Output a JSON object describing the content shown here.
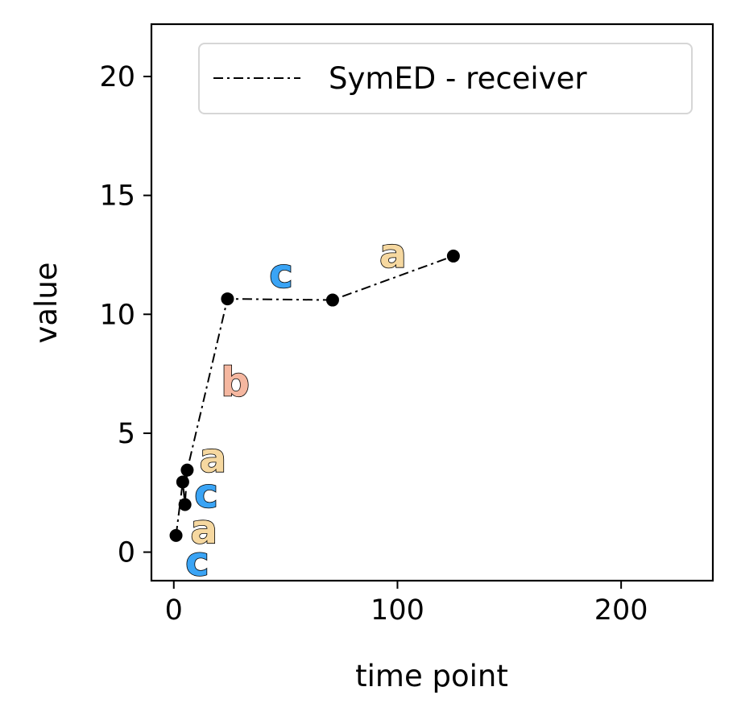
{
  "chart_data": {
    "type": "line",
    "xlabel": "time point",
    "ylabel": "value",
    "xlim": [
      -10,
      241
    ],
    "ylim": [
      -1.2,
      22.2
    ],
    "x_ticks": [
      0,
      100,
      200
    ],
    "y_ticks": [
      0,
      5,
      10,
      15,
      20
    ],
    "legend": {
      "position": "top-right",
      "entries": [
        "SymED - receiver"
      ]
    },
    "grid": false,
    "series": [
      {
        "name": "SymED - receiver",
        "line_style": "dash-dot",
        "color": "#000000",
        "x": [
          1,
          4,
          5,
          6,
          24,
          71,
          125
        ],
        "y": [
          0.7,
          2.95,
          2.0,
          3.45,
          10.65,
          10.6,
          12.45
        ]
      }
    ],
    "symbols": [
      {
        "text": "c",
        "x": 10.5,
        "y": -0.4,
        "color": "#3aa4f5"
      },
      {
        "text": "a",
        "x": 13.5,
        "y": 0.95,
        "color": "#f6d8a0"
      },
      {
        "text": "c",
        "x": 14.5,
        "y": 2.45,
        "color": "#3aa4f5"
      },
      {
        "text": "a",
        "x": 17.5,
        "y": 3.95,
        "color": "#f6d8a0"
      },
      {
        "text": "b",
        "x": 27.5,
        "y": 7.15,
        "color": "#f5b7a0"
      },
      {
        "text": "c",
        "x": 48.0,
        "y": 11.7,
        "color": "#3aa4f5"
      },
      {
        "text": "a",
        "x": 98.0,
        "y": 12.55,
        "color": "#f6d8a0"
      }
    ]
  }
}
